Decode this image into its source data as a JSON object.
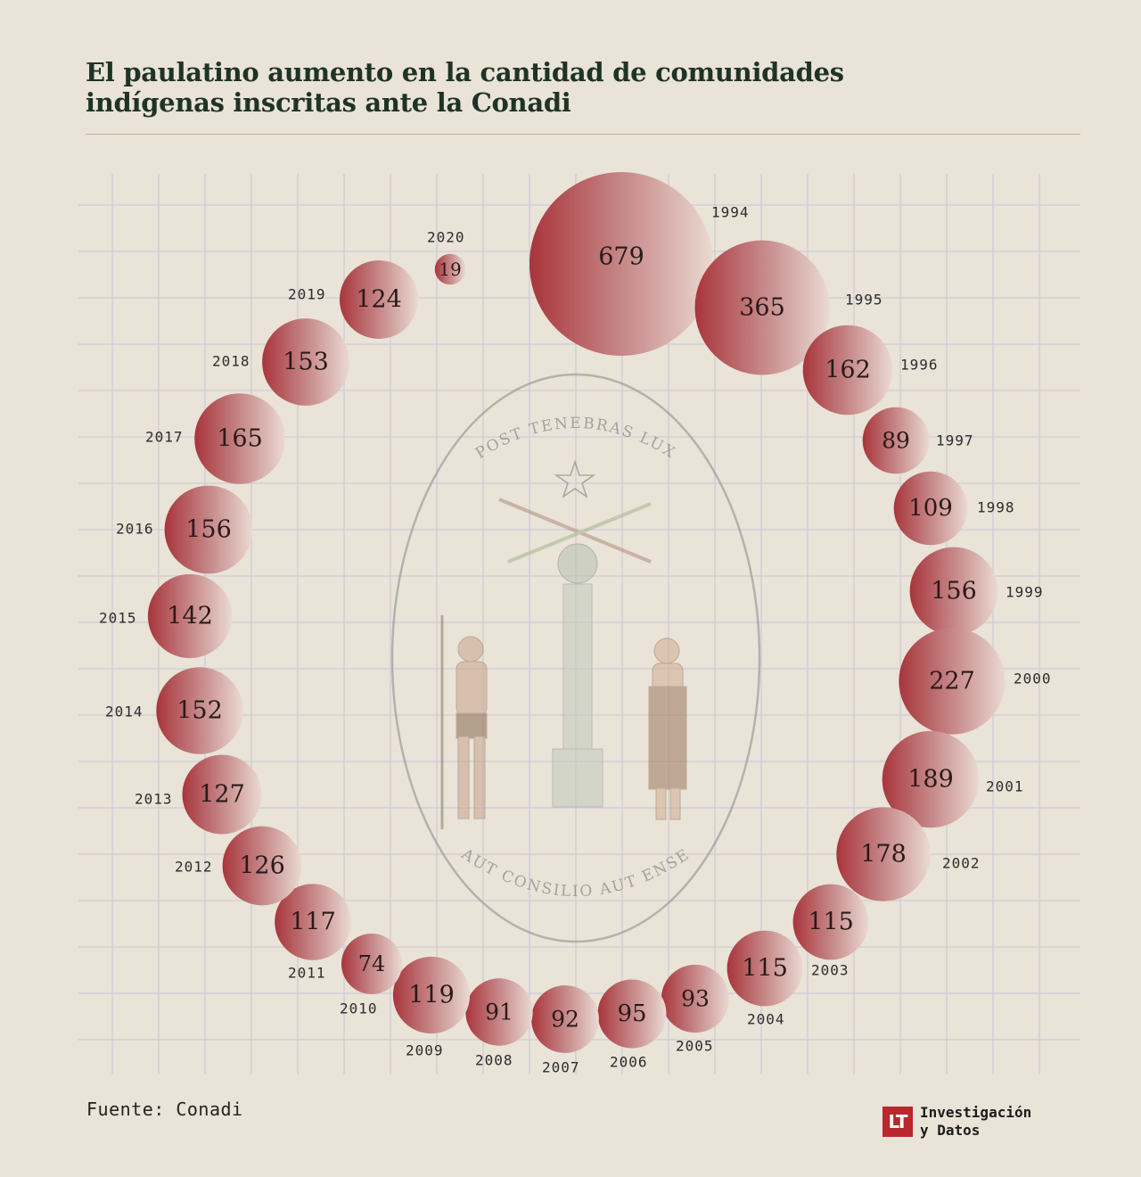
{
  "title": "El paulatino aumento en la cantidad de comunidades indígenas inscritas ante la Conadi",
  "source": "Fuente: Conadi",
  "brand": {
    "logo": "LT",
    "line1": "Investigación",
    "line2": "y Datos"
  },
  "emblem": {
    "top_motto": "POST TENEBRAS LUX",
    "bottom_motto": "AUT CONSILIO AUT ENSE"
  },
  "colors": {
    "background": "#e9e3d8",
    "bubble": "#a8353b",
    "grid": "#cfcbd6",
    "title": "#1f3326"
  },
  "chart_data": {
    "type": "bubble",
    "title": "El paulatino aumento en la cantidad de comunidades indígenas inscritas ante la Conadi",
    "points": [
      {
        "year": "1994",
        "value": 679
      },
      {
        "year": "1995",
        "value": 365
      },
      {
        "year": "1996",
        "value": 162
      },
      {
        "year": "1997",
        "value": 89
      },
      {
        "year": "1998",
        "value": 109
      },
      {
        "year": "1999",
        "value": 156
      },
      {
        "year": "2000",
        "value": 227
      },
      {
        "year": "2001",
        "value": 189
      },
      {
        "year": "2002",
        "value": 178
      },
      {
        "year": "2003",
        "value": 115
      },
      {
        "year": "2004",
        "value": 115
      },
      {
        "year": "2005",
        "value": 93
      },
      {
        "year": "2006",
        "value": 95
      },
      {
        "year": "2007",
        "value": 92
      },
      {
        "year": "2008",
        "value": 91
      },
      {
        "year": "2009",
        "value": 119
      },
      {
        "year": "2010",
        "value": 74
      },
      {
        "year": "2011",
        "value": 117
      },
      {
        "year": "2012",
        "value": 126
      },
      {
        "year": "2013",
        "value": 127
      },
      {
        "year": "2014",
        "value": 152
      },
      {
        "year": "2015",
        "value": 142
      },
      {
        "year": "2016",
        "value": 156
      },
      {
        "year": "2017",
        "value": 165
      },
      {
        "year": "2018",
        "value": 153
      },
      {
        "year": "2019",
        "value": 124
      },
      {
        "year": "2020",
        "value": 19
      }
    ]
  }
}
